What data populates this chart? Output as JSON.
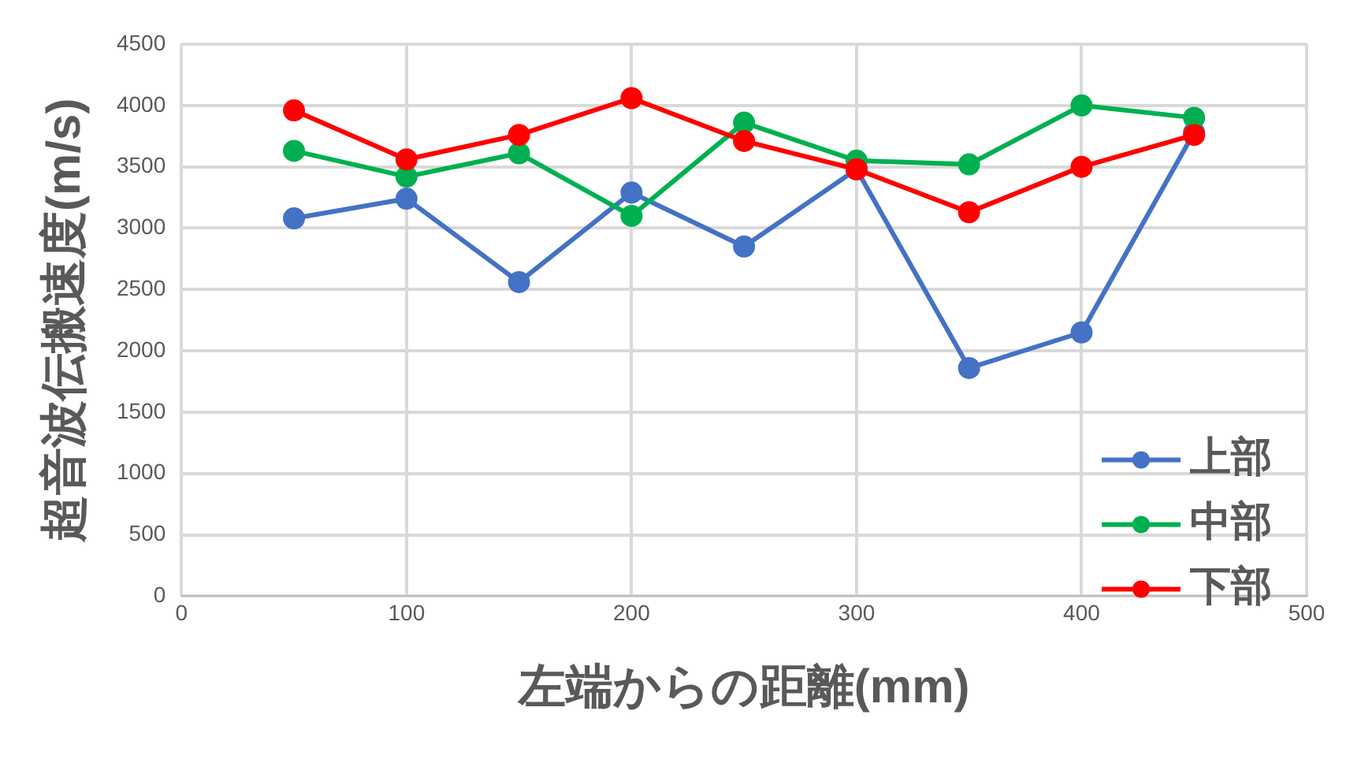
{
  "chart_data": {
    "type": "line",
    "xlabel": "左端からの距離(mm)",
    "ylabel": "超音波伝搬速度(m/s)",
    "x": [
      50,
      100,
      150,
      200,
      250,
      300,
      350,
      400,
      450
    ],
    "series": [
      {
        "name": "上部",
        "color": "#4472c4",
        "values": [
          3080,
          3240,
          2560,
          3290,
          2850,
          3480,
          1860,
          2150,
          3780
        ]
      },
      {
        "name": "中部",
        "color": "#00b050",
        "values": [
          3630,
          3420,
          3610,
          3100,
          3860,
          3550,
          3520,
          4000,
          3900
        ]
      },
      {
        "name": "下部",
        "color": "#ff0000",
        "values": [
          3960,
          3560,
          3760,
          4060,
          3710,
          3480,
          3130,
          3500,
          3760
        ]
      }
    ],
    "xlim": [
      0,
      500
    ],
    "xticks": [
      0,
      100,
      200,
      300,
      400,
      500
    ],
    "ylim": [
      0,
      4500
    ],
    "yticks": [
      0,
      500,
      1000,
      1500,
      2000,
      2500,
      3000,
      3500,
      4000,
      4500
    ],
    "grid": true,
    "legend": "bottom right",
    "marker": "circle",
    "line_style": "solid"
  }
}
